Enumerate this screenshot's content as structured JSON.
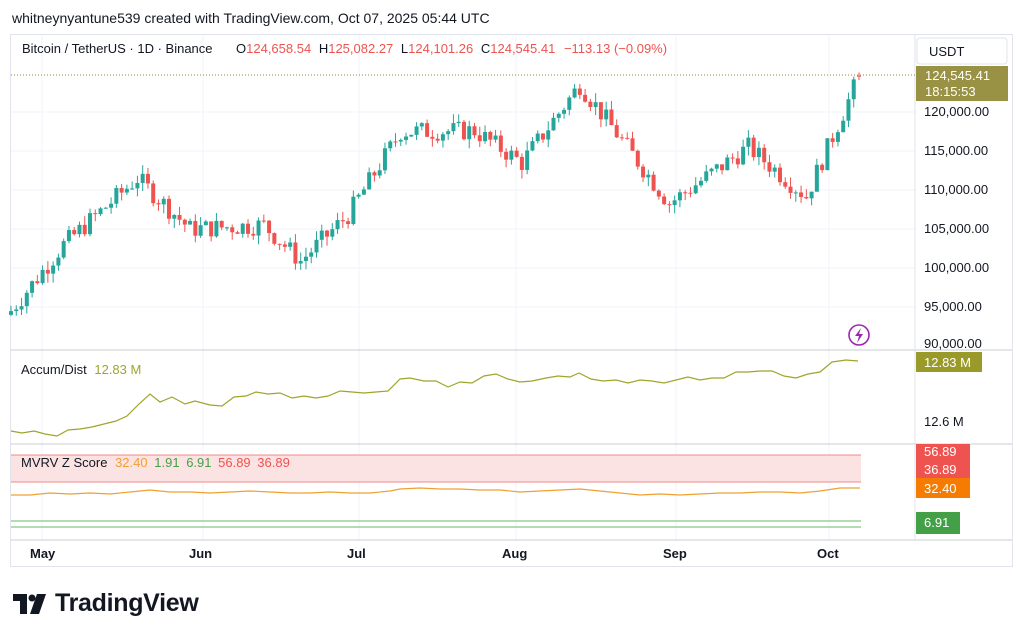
{
  "header": {
    "credit": "whitneynyantune539 created with TradingView.com, Oct 07, 2025 05:44 UTC"
  },
  "symbol_bar": {
    "symbol": "Bitcoin / TetherUS · 1D · Binance",
    "open_label": "O",
    "open": "124,658.54",
    "high_label": "H",
    "high": "125,082.27",
    "low_label": "L",
    "low": "124,101.26",
    "close_label": "C",
    "close": "124,545.41",
    "change": "−113.13 (−0.09%)"
  },
  "price_axis": {
    "currency": "USDT",
    "ticks": [
      "120,000.00",
      "115,000.00",
      "110,000.00",
      "105,000.00",
      "100,000.00",
      "95,000.00",
      "90,000.00"
    ],
    "last_price": "124,545.41",
    "countdown": "18:15:53"
  },
  "accum_dist": {
    "label": "Accum/Dist",
    "value": "12.83 M",
    "axis_badge": "12.83 M",
    "axis_tick": "12.6 M"
  },
  "mvrv": {
    "label": "MVRV Z Score",
    "values": [
      "32.40",
      "1.91",
      "6.91",
      "56.89",
      "36.89"
    ],
    "badges": [
      "56.89",
      "36.89",
      "32.40",
      "6.91"
    ]
  },
  "time_axis": {
    "labels": [
      "May",
      "Jun",
      "Jul",
      "Aug",
      "Sep",
      "Oct"
    ]
  },
  "brand": {
    "name": "TradingView"
  },
  "colors": {
    "up": "#26a69a",
    "down": "#ef5350",
    "ad_line": "#9fa52a",
    "mvrv_line": "#f0a030",
    "band_fill": "#fce3e3",
    "band_line": "#f08a8a",
    "green_line": "#66bb6a",
    "last_price_badge": "#999144"
  },
  "chart_data": [
    {
      "type": "candlestick",
      "title": "Bitcoin / TetherUS · 1D · Binance",
      "ylim": [
        90000,
        126000
      ],
      "x_labels": [
        "May",
        "Jun",
        "Jul",
        "Aug",
        "Sep",
        "Oct"
      ],
      "ohlc_keypoints": [
        {
          "date": "2025-04-28",
          "close": 94500
        },
        {
          "date": "2025-05-08",
          "close": 103000
        },
        {
          "date": "2025-05-22",
          "close": 111500
        },
        {
          "date": "2025-06-01",
          "close": 105000
        },
        {
          "date": "2025-06-15",
          "close": 105500
        },
        {
          "date": "2025-06-22",
          "close": 100900
        },
        {
          "date": "2025-07-01",
          "close": 106800
        },
        {
          "date": "2025-07-11",
          "close": 117500
        },
        {
          "date": "2025-07-25",
          "close": 117600
        },
        {
          "date": "2025-08-03",
          "close": 113500
        },
        {
          "date": "2025-08-14",
          "close": 123500
        },
        {
          "date": "2025-08-31",
          "close": 108300
        },
        {
          "date": "2025-09-15",
          "close": 115500
        },
        {
          "date": "2025-09-26",
          "close": 109200
        },
        {
          "date": "2025-10-06",
          "close": 124545.41
        }
      ],
      "last": {
        "open": 124658.54,
        "high": 125082.27,
        "low": 124101.26,
        "close": 124545.41
      }
    },
    {
      "type": "line",
      "title": "Accum/Dist",
      "series": [
        {
          "name": "Accum/Dist",
          "last": 12.83,
          "unit": "M"
        }
      ]
    },
    {
      "type": "line",
      "title": "MVRV Z Score",
      "series": [
        {
          "name": "MVRV Z Score",
          "last": 32.4
        },
        {
          "name": "1.91",
          "last": 1.91
        },
        {
          "name": "6.91",
          "last": 6.91
        },
        {
          "name": "56.89",
          "last": 56.89
        },
        {
          "name": "36.89",
          "last": 36.89
        }
      ]
    }
  ]
}
